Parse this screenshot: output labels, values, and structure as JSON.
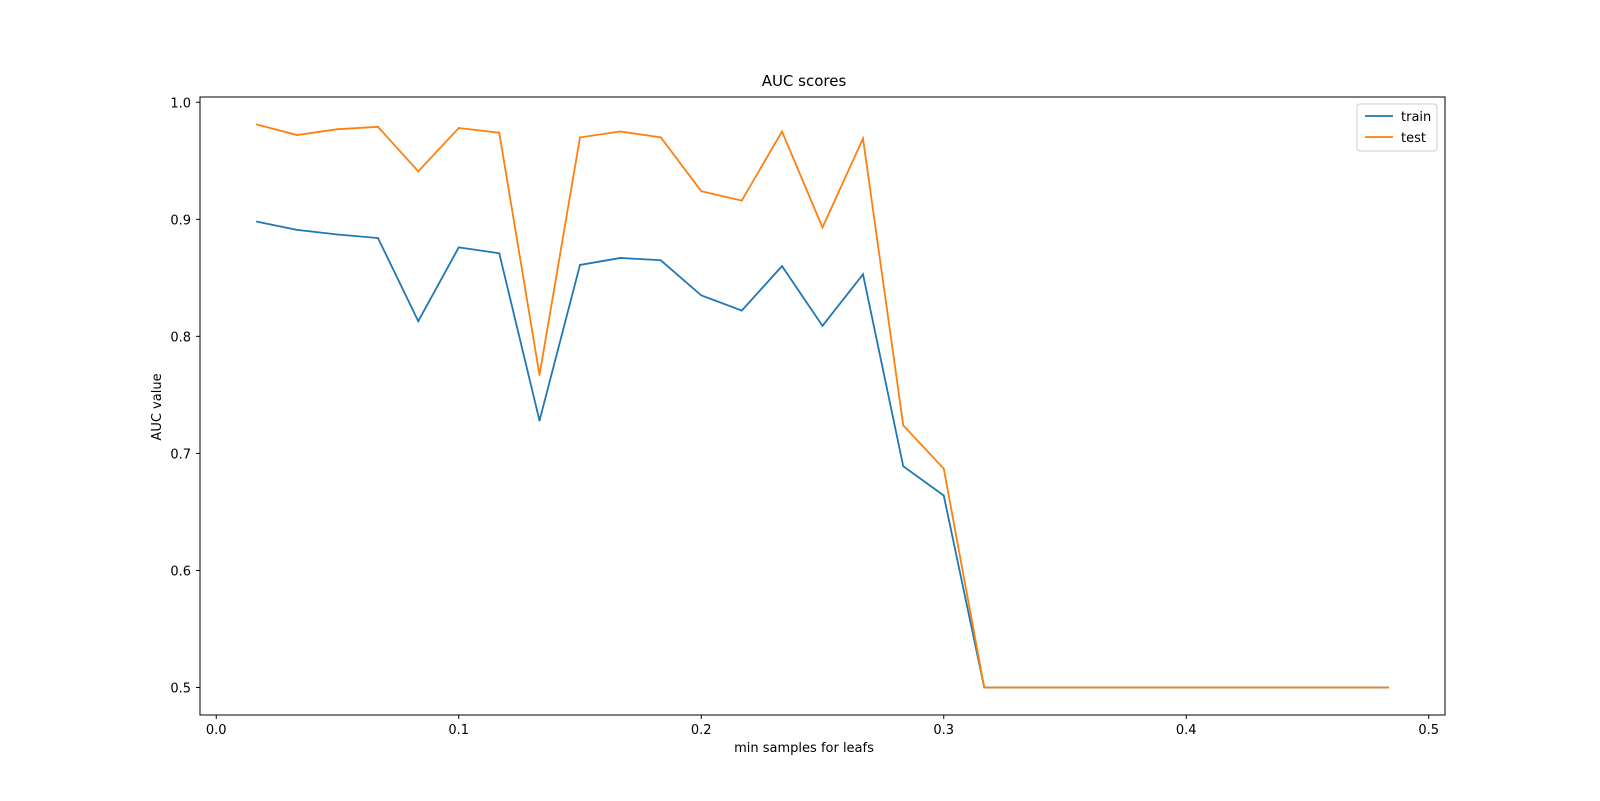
{
  "chart_data": {
    "type": "line",
    "title": "AUC scores",
    "xlabel": "min samples for leafs",
    "ylabel": "AUC value",
    "xlim": [
      -0.0067,
      0.5067
    ],
    "ylim": [
      0.4765,
      1.0045
    ],
    "xticks": [
      0.0,
      0.1,
      0.2,
      0.3,
      0.4,
      0.5
    ],
    "xtick_labels": [
      "0.0",
      "0.1",
      "0.2",
      "0.3",
      "0.4",
      "0.5"
    ],
    "yticks": [
      0.5,
      0.6,
      0.7,
      0.8,
      0.9,
      1.0
    ],
    "ytick_labels": [
      "0.5",
      "0.6",
      "0.7",
      "0.8",
      "0.9",
      "1.0"
    ],
    "legend_position": "top-right",
    "grid": false,
    "x": [
      0.0167,
      0.0333,
      0.05,
      0.0667,
      0.0833,
      0.1,
      0.1167,
      0.1333,
      0.15,
      0.1667,
      0.1833,
      0.2,
      0.2167,
      0.2333,
      0.25,
      0.2667,
      0.2833,
      0.3,
      0.3167,
      0.3333,
      0.35,
      0.3667,
      0.3833,
      0.4,
      0.4167,
      0.4333,
      0.45,
      0.4667,
      0.4833
    ],
    "series": [
      {
        "name": "train",
        "color": "#1f77b4",
        "values": [
          0.898,
          0.891,
          0.887,
          0.884,
          0.813,
          0.876,
          0.871,
          0.728,
          0.861,
          0.867,
          0.865,
          0.835,
          0.822,
          0.86,
          0.809,
          0.853,
          0.689,
          0.664,
          0.5,
          0.5,
          0.5,
          0.5,
          0.5,
          0.5,
          0.5,
          0.5,
          0.5,
          0.5,
          0.5
        ]
      },
      {
        "name": "test",
        "color": "#ff7f0e",
        "values": [
          0.981,
          0.972,
          0.977,
          0.979,
          0.941,
          0.978,
          0.974,
          0.767,
          0.97,
          0.975,
          0.97,
          0.924,
          0.916,
          0.975,
          0.893,
          0.969,
          0.724,
          0.687,
          0.5,
          0.5,
          0.5,
          0.5,
          0.5,
          0.5,
          0.5,
          0.5,
          0.5,
          0.5,
          0.5
        ]
      }
    ]
  }
}
